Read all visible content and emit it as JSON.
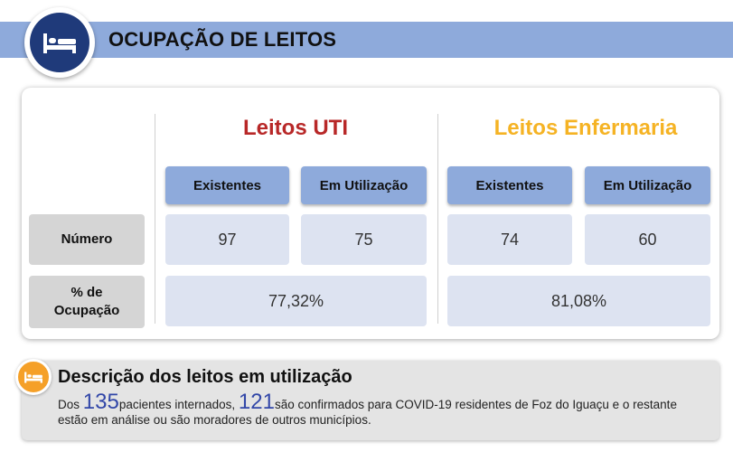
{
  "header": {
    "title": "OCUPAÇÃO DE LEITOS",
    "icon": "bed-icon"
  },
  "table": {
    "uti": {
      "title": "Leitos UTI",
      "title_color": "#b82828",
      "col_existentes": "Existentes",
      "col_em_utilizacao": "Em Utilização",
      "existentes": "97",
      "em_utilizacao": "75",
      "ocupacao": "77,32%"
    },
    "enfermaria": {
      "title": "Leitos Enfermaria",
      "title_color": "#f5b324",
      "col_existentes": "Existentes",
      "col_em_utilizacao": "Em Utilização",
      "existentes": "74",
      "em_utilizacao": "60",
      "ocupacao": "81,08%"
    },
    "row_numero": "Número",
    "row_ocupacao_line1": "% de",
    "row_ocupacao_line2": "Ocupação"
  },
  "description": {
    "icon": "bed-icon",
    "title": "Descrição dos leitos em utilização",
    "text_prefix": "Dos ",
    "num_pacientes": "135",
    "text_mid": "pacientes internados, ",
    "num_confirmados": "121",
    "text_suffix": "são confirmados para COVID-19 residentes de Foz do Iguaçu e o restante estão em análise ou são moradores de outros municípios."
  },
  "colors": {
    "header_bar": "#8eaadb",
    "header_icon_bg": "#1f3a7a",
    "desc_icon_bg": "#f5a028",
    "cell_bg": "#dde3f1",
    "row_head_bg": "#d5d5d5"
  }
}
